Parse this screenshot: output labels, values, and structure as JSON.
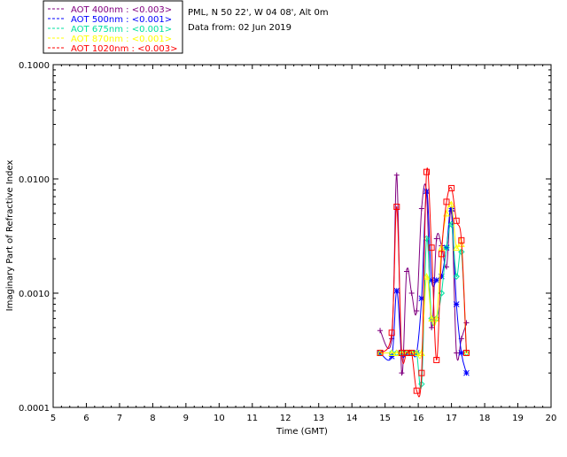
{
  "chart_data": {
    "type": "line",
    "title": "",
    "xlabel": "Time (GMT)",
    "ylabel": "Imaginary Part of Refractive Index",
    "x_ticks": [
      "5",
      "6",
      "7",
      "8",
      "9",
      "10",
      "11",
      "12",
      "13",
      "14",
      "15",
      "16",
      "17",
      "18",
      "19",
      "20"
    ],
    "y_ticks": [
      "0.0001",
      "0.0010",
      "0.0100",
      "0.1000"
    ],
    "xlim": [
      5,
      20
    ],
    "ylim": [
      0.0001,
      0.1
    ],
    "y_scale": "log",
    "grid": false,
    "legend_position": "top-left, outside plot",
    "info_lines": [
      "PML, N 50 22', W 04 08', Alt 0m",
      "Data from: 02 Jun 2019"
    ],
    "series": [
      {
        "name": "AOT  400nm : <0.003>",
        "color": "#800080",
        "marker": "plus",
        "x": [
          14.85,
          15.2,
          15.35,
          15.5,
          15.65,
          15.8,
          15.95,
          16.1,
          16.25,
          16.4,
          16.55,
          16.7,
          16.85,
          17.0,
          17.15,
          17.3,
          17.45
        ],
        "y": [
          0.00047,
          0.0004,
          0.0108,
          0.0002,
          0.00155,
          0.001,
          0.0007,
          0.0055,
          0.0075,
          0.0005,
          0.003,
          0.0026,
          0.0017,
          0.0052,
          0.0003,
          0.0004,
          0.00055
        ]
      },
      {
        "name": "AOT  500nm : <0.001>",
        "color": "#0000ff",
        "marker": "asterisk",
        "x": [
          14.85,
          15.2,
          15.35,
          15.5,
          15.65,
          15.8,
          15.95,
          16.1,
          16.25,
          16.4,
          16.55,
          16.7,
          16.85,
          17.0,
          17.15,
          17.3,
          17.45
        ],
        "y": [
          0.0003,
          0.00028,
          0.00105,
          0.0003,
          0.0003,
          0.0003,
          0.0003,
          0.0009,
          0.0078,
          0.0013,
          0.0013,
          0.0014,
          0.0025,
          0.0055,
          0.0008,
          0.0003,
          0.0002
        ]
      },
      {
        "name": "AOT  675nm : <0.001>",
        "color": "#00e0a0",
        "marker": "diamond",
        "x": [
          14.85,
          15.2,
          15.35,
          15.5,
          15.65,
          15.8,
          15.95,
          16.1,
          16.25,
          16.4,
          16.55,
          16.7,
          16.85,
          17.0,
          17.15,
          17.3,
          17.45
        ],
        "y": [
          0.0003,
          0.0003,
          0.0003,
          0.0003,
          0.0003,
          0.0003,
          0.0003,
          0.00016,
          0.003,
          0.0006,
          0.0006,
          0.001,
          0.0025,
          0.004,
          0.0014,
          0.0023,
          0.0003
        ]
      },
      {
        "name": "AOT  870nm : <0.001>",
        "color": "#ffff00",
        "marker": "triangle",
        "x": [
          14.85,
          15.2,
          15.35,
          15.5,
          15.65,
          15.8,
          15.95,
          16.1,
          16.25,
          16.4,
          16.55,
          16.7,
          16.85,
          17.0,
          17.15,
          17.3,
          17.45
        ],
        "y": [
          0.0003,
          0.0003,
          0.0003,
          0.0003,
          0.0003,
          0.0003,
          0.0003,
          0.0003,
          0.0014,
          0.0006,
          0.0006,
          0.0025,
          0.005,
          0.006,
          0.0025,
          0.0027,
          0.0003
        ]
      },
      {
        "name": "AOT 1020nm : <0.003>",
        "color": "#ff0000",
        "marker": "square",
        "x": [
          14.85,
          15.2,
          15.35,
          15.5,
          15.65,
          15.8,
          15.95,
          16.1,
          16.25,
          16.4,
          16.55,
          16.7,
          16.85,
          17.0,
          17.15,
          17.3,
          17.45
        ],
        "y": [
          0.0003,
          0.00045,
          0.0057,
          0.0003,
          0.0003,
          0.0003,
          0.00014,
          0.0002,
          0.0115,
          0.0025,
          0.00026,
          0.0022,
          0.0063,
          0.0083,
          0.0043,
          0.0029,
          0.0003
        ]
      }
    ]
  }
}
